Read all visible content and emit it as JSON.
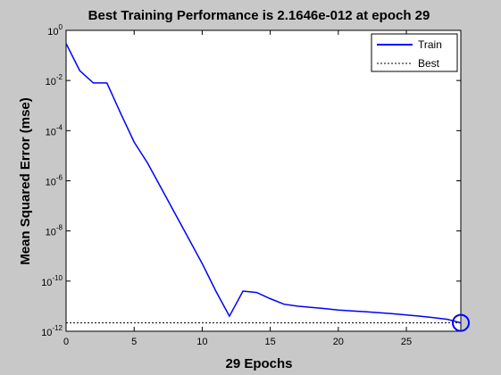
{
  "chart_data": {
    "type": "line",
    "title": "Best Training Performance is 2.1646e-012 at epoch 29",
    "xlabel": "29 Epochs",
    "ylabel": "Mean Squared Error  (mse)",
    "xlim": [
      0,
      29
    ],
    "ylim": [
      1e-12,
      1
    ],
    "yscale": "log",
    "xticks": [
      0,
      5,
      10,
      15,
      20,
      25
    ],
    "yticks": [
      {
        "value": 1,
        "base": "10",
        "exp": "0"
      },
      {
        "value": 0.01,
        "base": "10",
        "exp": "-2"
      },
      {
        "value": 0.0001,
        "base": "10",
        "exp": "-4"
      },
      {
        "value": 1e-06,
        "base": "10",
        "exp": "-6"
      },
      {
        "value": 1e-08,
        "base": "10",
        "exp": "-8"
      },
      {
        "value": 1e-10,
        "base": "10",
        "exp": "-10"
      },
      {
        "value": 1e-12,
        "base": "10",
        "exp": "-12"
      }
    ],
    "grid": false,
    "legend_position": "top-right",
    "series": [
      {
        "name": "Train",
        "color": "#0000ff",
        "style": "solid",
        "x": [
          0,
          1,
          2,
          3,
          4,
          5,
          6,
          7,
          8,
          9,
          10,
          11,
          12,
          13,
          14,
          15,
          16,
          17,
          18,
          19,
          20,
          21,
          22,
          23,
          24,
          25,
          26,
          27,
          28,
          29
        ],
        "y": [
          0.3,
          0.025,
          0.008,
          0.008,
          0.0005,
          3.5e-05,
          5e-06,
          5e-07,
          5e-08,
          5e-09,
          5e-10,
          4e-11,
          4e-12,
          4e-11,
          3.5e-11,
          2e-11,
          1.2e-11,
          1e-11,
          9e-12,
          8e-12,
          7e-12,
          6.5e-12,
          6e-12,
          5.5e-12,
          5e-12,
          4.5e-12,
          4e-12,
          3.5e-12,
          3e-12,
          2.1646e-12
        ]
      },
      {
        "name": "Best",
        "color": "#000000",
        "style": "dotted",
        "best_epoch": 29,
        "best_value": 2.1646e-12
      }
    ],
    "best_marker": {
      "x": 29,
      "y": 2.1646e-12,
      "color": "#0000ff",
      "shape": "circle"
    }
  }
}
